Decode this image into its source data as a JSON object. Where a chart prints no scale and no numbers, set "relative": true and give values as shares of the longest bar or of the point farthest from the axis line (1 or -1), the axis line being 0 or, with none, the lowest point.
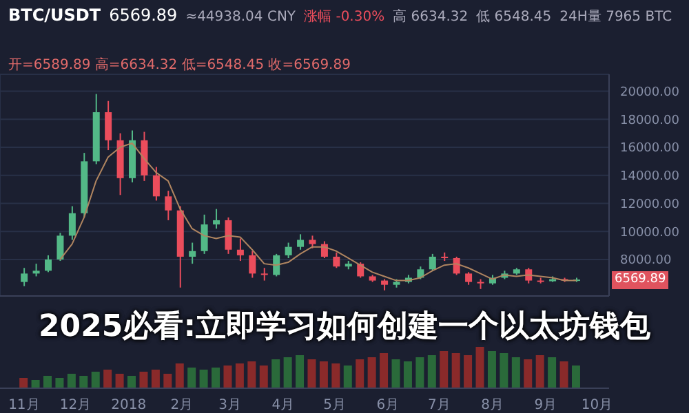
{
  "chart_data": [
    {
      "type": "candlestick",
      "title": "BTC/USDT",
      "annotations": [
        "6569.89",
        "≈44938.04 CNY",
        "涨幅 -0.30%",
        "高 6634.32",
        "低 6548.45",
        "24H量 7965 BTC",
        "开=6589.89 高=6634.32 低=6548.45 收=6569.89",
        "6569.89",
        "2025必看:立即学习如何创建一个以太坊钱包"
      ],
      "x": [
        "2017-11-01",
        "2017-11-08",
        "2017-11-15",
        "2017-11-22",
        "2017-11-29",
        "2017-12-06",
        "2017-12-13",
        "2017-12-20",
        "2017-12-27",
        "2018-01-03",
        "2018-01-10",
        "2018-01-17",
        "2018-01-24",
        "2018-01-31",
        "2018-02-07",
        "2018-02-14",
        "2018-02-21",
        "2018-02-28",
        "2018-03-07",
        "2018-03-14",
        "2018-03-21",
        "2018-03-28",
        "2018-04-04",
        "2018-04-11",
        "2018-04-18",
        "2018-04-25",
        "2018-05-02",
        "2018-05-09",
        "2018-05-16",
        "2018-05-23",
        "2018-05-30",
        "2018-06-06",
        "2018-06-13",
        "2018-06-20",
        "2018-06-27",
        "2018-07-04",
        "2018-07-11",
        "2018-07-18",
        "2018-07-25",
        "2018-08-01",
        "2018-08-08",
        "2018-08-15",
        "2018-08-22",
        "2018-08-29",
        "2018-09-05",
        "2018-09-12",
        "2018-09-19"
      ],
      "ohlc": [
        [
          6400,
          7400,
          6100,
          7000
        ],
        [
          7000,
          7700,
          6800,
          7200
        ],
        [
          7200,
          8300,
          7100,
          8000
        ],
        [
          8000,
          9900,
          7900,
          9700
        ],
        [
          9700,
          11800,
          9400,
          11300
        ],
        [
          11300,
          15600,
          11000,
          15000
        ],
        [
          15000,
          19800,
          14800,
          18500
        ],
        [
          18500,
          19300,
          15800,
          16500
        ],
        [
          16500,
          17000,
          12600,
          13800
        ],
        [
          13800,
          17200,
          13500,
          16500
        ],
        [
          16500,
          17100,
          13600,
          14000
        ],
        [
          14000,
          14600,
          12200,
          12500
        ],
        [
          12500,
          12900,
          10800,
          11500
        ],
        [
          11500,
          11800,
          6000,
          8200
        ],
        [
          8200,
          9200,
          7700,
          8600
        ],
        [
          8600,
          11200,
          8400,
          10500
        ],
        [
          10500,
          11600,
          10200,
          10800
        ],
        [
          10800,
          11000,
          8400,
          8700
        ],
        [
          8700,
          9500,
          7900,
          8300
        ],
        [
          8300,
          8600,
          6700,
          7000
        ],
        [
          7000,
          7400,
          6500,
          6900
        ],
        [
          6900,
          8400,
          6800,
          8300
        ],
        [
          8300,
          9200,
          8100,
          8900
        ],
        [
          8900,
          9800,
          8700,
          9400
        ],
        [
          9400,
          9700,
          8800,
          9100
        ],
        [
          9100,
          9300,
          8100,
          8200
        ],
        [
          8200,
          8500,
          7400,
          7500
        ],
        [
          7500,
          7900,
          7300,
          7700
        ],
        [
          7700,
          7800,
          6700,
          6800
        ],
        [
          6800,
          6900,
          6400,
          6500
        ],
        [
          6500,
          6600,
          5800,
          6200
        ],
        [
          6200,
          6600,
          6000,
          6400
        ],
        [
          6400,
          6900,
          6300,
          6700
        ],
        [
          6700,
          7500,
          6600,
          7300
        ],
        [
          7300,
          8400,
          7200,
          8200
        ],
        [
          8200,
          8500,
          7900,
          8100
        ],
        [
          8100,
          8200,
          6900,
          7000
        ],
        [
          7000,
          7100,
          6200,
          6400
        ],
        [
          6400,
          6600,
          5900,
          6300
        ],
        [
          6300,
          6900,
          6200,
          6700
        ],
        [
          6700,
          7200,
          6600,
          7000
        ],
        [
          7000,
          7400,
          6900,
          7300
        ],
        [
          7300,
          7400,
          6300,
          6500
        ],
        [
          6500,
          6700,
          6300,
          6450
        ],
        [
          6450,
          6800,
          6400,
          6600
        ],
        [
          6600,
          6700,
          6400,
          6500
        ],
        [
          6500,
          6700,
          6400,
          6569.89
        ]
      ],
      "colors": [
        "#53b987",
        "#53b987",
        "#53b987",
        "#53b987",
        "#53b987",
        "#53b987",
        "#53b987",
        "#eb4d5c",
        "#eb4d5c",
        "#53b987",
        "#eb4d5c",
        "#eb4d5c",
        "#eb4d5c",
        "#eb4d5c",
        "#53b987",
        "#53b987",
        "#53b987",
        "#eb4d5c",
        "#eb4d5c",
        "#eb4d5c",
        "#eb4d5c",
        "#53b987",
        "#53b987",
        "#53b987",
        "#eb4d5c",
        "#eb4d5c",
        "#eb4d5c",
        "#53b987",
        "#eb4d5c",
        "#eb4d5c",
        "#eb4d5c",
        "#53b987",
        "#53b987",
        "#53b987",
        "#53b987",
        "#eb4d5c",
        "#eb4d5c",
        "#eb4d5c",
        "#eb4d5c",
        "#53b987",
        "#53b987",
        "#53b987",
        "#eb4d5c",
        "#eb4d5c",
        "#53b987",
        "#eb4d5c",
        "#53b987"
      ],
      "series": [
        {
          "type": "line",
          "color": "#b08560",
          "values": [
            null,
            null,
            null,
            8000,
            9100,
            11000,
            13600,
            15300,
            16000,
            16300,
            15200,
            14200,
            13600,
            11600,
            10200,
            9700,
            9500,
            9700,
            9600,
            8700,
            7700,
            7600,
            7800,
            8400,
            8900,
            8900,
            8600,
            8100,
            7600,
            7100,
            6800,
            6500,
            6500,
            6700,
            7200,
            7600,
            7700,
            7400,
            7000,
            6600,
            6900,
            6800,
            6900,
            6800,
            6700,
            6500,
            6500
          ]
        }
      ],
      "xlim": [
        "2017-10-18",
        "2018-10-08"
      ],
      "ylim": [
        5400,
        21200
      ],
      "yticks": [
        {
          "value": 8000,
          "label": "8000.00"
        },
        {
          "value": 10000,
          "label": "10000.00"
        },
        {
          "value": 12000,
          "label": "12000.00"
        },
        {
          "value": 14000,
          "label": "14000.00"
        },
        {
          "value": 16000,
          "label": "16000.00"
        },
        {
          "value": 18000,
          "label": "18000.00"
        },
        {
          "value": 20000,
          "label": "20000.00"
        }
      ],
      "xticks": [
        {
          "value": "2017-11-01",
          "label": null
        },
        {
          "value": "2017-12-01",
          "label": null
        },
        {
          "value": "2018-01-01",
          "label": null
        },
        {
          "value": "2018-02-01",
          "label": null
        },
        {
          "value": "2018-03-01",
          "label": null
        },
        {
          "value": "2018-04-01",
          "label": null
        },
        {
          "value": "2018-05-01",
          "label": null
        },
        {
          "value": "2018-06-01",
          "label": null
        },
        {
          "value": "2018-07-01",
          "label": null
        },
        {
          "value": "2018-08-01",
          "label": null
        },
        {
          "value": "2018-09-01",
          "label": null
        },
        {
          "value": "2018-10-01",
          "label": null
        }
      ],
      "grid": true,
      "tick_labels": "y"
    },
    {
      "type": "bar",
      "relative": true,
      "x": [
        "2017-11-01",
        "2017-11-08",
        "2017-11-15",
        "2017-11-22",
        "2017-11-29",
        "2017-12-06",
        "2017-12-13",
        "2017-12-20",
        "2017-12-27",
        "2018-01-03",
        "2018-01-10",
        "2018-01-17",
        "2018-01-24",
        "2018-01-31",
        "2018-02-07",
        "2018-02-14",
        "2018-02-21",
        "2018-02-28",
        "2018-03-07",
        "2018-03-14",
        "2018-03-21",
        "2018-03-28",
        "2018-04-04",
        "2018-04-11",
        "2018-04-18",
        "2018-04-25",
        "2018-05-02",
        "2018-05-09",
        "2018-05-16",
        "2018-05-23",
        "2018-05-30",
        "2018-06-06",
        "2018-06-13",
        "2018-06-20",
        "2018-06-27",
        "2018-07-04",
        "2018-07-11",
        "2018-07-18",
        "2018-07-25",
        "2018-08-01",
        "2018-08-08",
        "2018-08-15",
        "2018-08-22",
        "2018-08-29",
        "2018-09-05",
        "2018-09-12",
        "2018-09-19"
      ],
      "values": [
        0.25,
        0.2,
        0.3,
        0.25,
        0.35,
        0.3,
        0.4,
        0.45,
        0.35,
        0.3,
        0.4,
        0.45,
        0.35,
        0.6,
        0.5,
        0.45,
        0.5,
        0.55,
        0.6,
        0.65,
        0.55,
        0.7,
        0.75,
        0.8,
        0.7,
        0.65,
        0.6,
        0.55,
        0.7,
        0.75,
        0.85,
        0.7,
        0.65,
        0.75,
        0.8,
        0.9,
        0.85,
        0.8,
        1,
        0.9,
        0.85,
        0.75,
        0.7,
        0.8,
        0.75,
        0.65,
        0.55
      ],
      "colors": [
        "#8a2a2a",
        "#2a6a3a",
        "#2a6a3a",
        "#2a6a3a",
        "#2a6a3a",
        "#2a6a3a",
        "#2a6a3a",
        "#8a2a2a",
        "#8a2a2a",
        "#2a6a3a",
        "#8a2a2a",
        "#8a2a2a",
        "#8a2a2a",
        "#8a2a2a",
        "#2a6a3a",
        "#2a6a3a",
        "#2a6a3a",
        "#8a2a2a",
        "#8a2a2a",
        "#8a2a2a",
        "#8a2a2a",
        "#2a6a3a",
        "#2a6a3a",
        "#2a6a3a",
        "#8a2a2a",
        "#8a2a2a",
        "#8a2a2a",
        "#2a6a3a",
        "#8a2a2a",
        "#8a2a2a",
        "#8a2a2a",
        "#2a6a3a",
        "#2a6a3a",
        "#2a6a3a",
        "#2a6a3a",
        "#8a2a2a",
        "#8a2a2a",
        "#8a2a2a",
        "#8a2a2a",
        "#2a6a3a",
        "#2a6a3a",
        "#2a6a3a",
        "#8a2a2a",
        "#8a2a2a",
        "#2a6a3a",
        "#8a2a2a",
        "#2a6a3a"
      ],
      "xlim": [
        "2017-10-18",
        "2018-10-08"
      ],
      "xticks": [
        {
          "value": "2017-11-01",
          "label": "11月"
        },
        {
          "value": "2017-12-01",
          "label": "12月"
        },
        {
          "value": "2018-01-01",
          "label": "2018"
        },
        {
          "value": "2018-02-01",
          "label": "2月"
        },
        {
          "value": "2018-03-01",
          "label": "3月"
        },
        {
          "value": "2018-04-01",
          "label": "4月"
        },
        {
          "value": "2018-05-01",
          "label": "5月"
        },
        {
          "value": "2018-06-01",
          "label": "6月"
        },
        {
          "value": "2018-07-01",
          "label": "7月"
        },
        {
          "value": "2018-08-01",
          "label": "8月"
        },
        {
          "value": "2018-09-01",
          "label": "9月"
        },
        {
          "value": "2018-10-01",
          "label": "10月"
        }
      ]
    }
  ]
}
